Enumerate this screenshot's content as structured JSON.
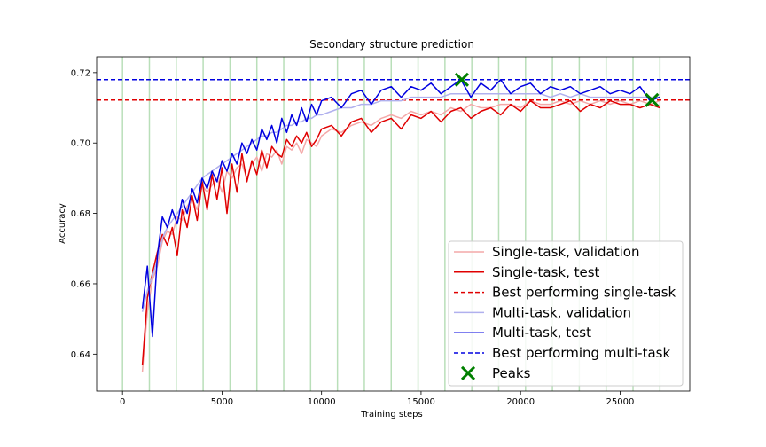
{
  "chart_data": {
    "type": "line",
    "title": "Secondary structure prediction",
    "xlabel": "Training steps",
    "ylabel": "Accuracy",
    "xlim": [
      -1300,
      28500
    ],
    "ylim": [
      0.6295,
      0.7245
    ],
    "xticks": [
      0,
      5000,
      10000,
      15000,
      20000,
      25000
    ],
    "yticks": [
      0.64,
      0.66,
      0.68,
      0.7,
      0.72
    ],
    "xtick_labels": [
      "0",
      "5000",
      "10000",
      "15000",
      "20000",
      "25000"
    ],
    "ytick_labels": [
      "0.64",
      "0.66",
      "0.68",
      "0.70",
      "0.72"
    ],
    "grid": false,
    "legend_position": "lower-right",
    "epoch_markers": {
      "color": "#b9dfb9",
      "x": [
        0,
        1350,
        2700,
        4050,
        5400,
        6750,
        8100,
        9450,
        10800,
        12150,
        13500,
        14850,
        16200,
        17550,
        18900,
        20250,
        21600,
        22950,
        24300,
        25650,
        27000
      ]
    },
    "series": [
      {
        "name": "Single-task, validation",
        "color": "#f4a9a9",
        "width": 1.5,
        "x": [
          1000,
          1250,
          1500,
          1750,
          2000,
          2250,
          2500,
          2750,
          3000,
          3250,
          3500,
          3750,
          4000,
          4250,
          4500,
          4750,
          5000,
          5250,
          5500,
          5750,
          6000,
          6250,
          6500,
          6750,
          7000,
          7250,
          7500,
          7750,
          8000,
          8250,
          8500,
          8750,
          9000,
          9250,
          9500,
          9750,
          10000,
          10500,
          11000,
          11500,
          12000,
          12500,
          13000,
          13500,
          14000,
          14500,
          15000,
          15500,
          16000,
          16500,
          17000,
          17500,
          18000,
          18500,
          19000,
          19500,
          20000,
          20500,
          21000,
          21500,
          22000,
          22500,
          23000,
          23500,
          24000,
          24500,
          25000,
          25500,
          26000,
          26500,
          27000
        ],
        "values": [
          0.635,
          0.652,
          0.661,
          0.665,
          0.672,
          0.675,
          0.674,
          0.679,
          0.678,
          0.682,
          0.684,
          0.681,
          0.688,
          0.686,
          0.688,
          0.69,
          0.686,
          0.692,
          0.69,
          0.693,
          0.694,
          0.69,
          0.694,
          0.696,
          0.692,
          0.697,
          0.696,
          0.698,
          0.694,
          0.699,
          0.698,
          0.7,
          0.697,
          0.701,
          0.7,
          0.699,
          0.702,
          0.704,
          0.703,
          0.705,
          0.706,
          0.705,
          0.707,
          0.708,
          0.707,
          0.709,
          0.708,
          0.709,
          0.708,
          0.71,
          0.709,
          0.711,
          0.71,
          0.71,
          0.711,
          0.711,
          0.71,
          0.712,
          0.711,
          0.711,
          0.712,
          0.711,
          0.712,
          0.711,
          0.712,
          0.711,
          0.712,
          0.711,
          0.712,
          0.711,
          0.712
        ]
      },
      {
        "name": "Single-task, test",
        "color": "#e00000",
        "width": 1.5,
        "x": [
          1000,
          1250,
          1500,
          1750,
          2000,
          2250,
          2500,
          2750,
          3000,
          3250,
          3500,
          3750,
          4000,
          4250,
          4500,
          4750,
          5000,
          5250,
          5500,
          5750,
          6000,
          6250,
          6500,
          6750,
          7000,
          7250,
          7500,
          7750,
          8000,
          8250,
          8500,
          8750,
          9000,
          9250,
          9500,
          9750,
          10000,
          10500,
          11000,
          11500,
          12000,
          12500,
          13000,
          13500,
          14000,
          14500,
          15000,
          15500,
          16000,
          16500,
          17000,
          17500,
          18000,
          18500,
          19000,
          19500,
          20000,
          20500,
          21000,
          21500,
          22000,
          22500,
          23000,
          23500,
          24000,
          24500,
          25000,
          25500,
          26000,
          26500,
          27000
        ],
        "values": [
          0.637,
          0.656,
          0.663,
          0.669,
          0.674,
          0.671,
          0.676,
          0.668,
          0.681,
          0.676,
          0.685,
          0.678,
          0.689,
          0.681,
          0.691,
          0.684,
          0.693,
          0.68,
          0.694,
          0.686,
          0.697,
          0.689,
          0.695,
          0.691,
          0.698,
          0.693,
          0.699,
          0.697,
          0.696,
          0.701,
          0.699,
          0.702,
          0.7,
          0.703,
          0.699,
          0.701,
          0.704,
          0.705,
          0.702,
          0.706,
          0.707,
          0.703,
          0.706,
          0.707,
          0.704,
          0.708,
          0.707,
          0.709,
          0.706,
          0.709,
          0.71,
          0.707,
          0.709,
          0.71,
          0.708,
          0.711,
          0.709,
          0.712,
          0.71,
          0.71,
          0.711,
          0.712,
          0.709,
          0.711,
          0.71,
          0.712,
          0.711,
          0.711,
          0.71,
          0.711,
          0.71
        ]
      },
      {
        "name": "Best performing single-task",
        "color": "#e00000",
        "dashed": true,
        "width": 1.5,
        "x": [
          -1300,
          28500
        ],
        "values": [
          0.7122,
          0.7122
        ]
      },
      {
        "name": "Multi-task, validation",
        "color": "#b0b0ee",
        "width": 1.5,
        "x": [
          1000,
          1250,
          1500,
          1750,
          2000,
          2250,
          2500,
          2750,
          3000,
          3250,
          3500,
          3750,
          4000,
          4250,
          4500,
          4750,
          5000,
          5250,
          5500,
          5750,
          6000,
          6250,
          6500,
          6750,
          7000,
          7250,
          7500,
          7750,
          8000,
          8250,
          8500,
          8750,
          9000,
          9250,
          9500,
          9750,
          10000,
          10500,
          11000,
          11500,
          12000,
          12500,
          13000,
          13500,
          14000,
          14500,
          15000,
          15500,
          16000,
          16500,
          17000,
          17500,
          18000,
          18500,
          19000,
          19500,
          20000,
          20500,
          21000,
          21500,
          22000,
          22500,
          23000,
          23500,
          24000,
          24500,
          25000,
          25500,
          26000,
          26500,
          27000
        ],
        "values": [
          0.652,
          0.658,
          0.662,
          0.667,
          0.673,
          0.676,
          0.678,
          0.68,
          0.682,
          0.684,
          0.686,
          0.688,
          0.69,
          0.691,
          0.692,
          0.693,
          0.694,
          0.695,
          0.696,
          0.697,
          0.698,
          0.699,
          0.7,
          0.701,
          0.702,
          0.702,
          0.703,
          0.703,
          0.704,
          0.705,
          0.705,
          0.706,
          0.706,
          0.707,
          0.707,
          0.708,
          0.708,
          0.709,
          0.71,
          0.71,
          0.711,
          0.711,
          0.712,
          0.712,
          0.712,
          0.713,
          0.713,
          0.713,
          0.713,
          0.714,
          0.714,
          0.714,
          0.714,
          0.714,
          0.714,
          0.714,
          0.714,
          0.714,
          0.714,
          0.713,
          0.714,
          0.713,
          0.714,
          0.713,
          0.713,
          0.713,
          0.713,
          0.713,
          0.713,
          0.713,
          0.713
        ]
      },
      {
        "name": "Multi-task, test",
        "color": "#0000e0",
        "width": 1.5,
        "x": [
          1000,
          1250,
          1500,
          1750,
          2000,
          2250,
          2500,
          2750,
          3000,
          3250,
          3500,
          3750,
          4000,
          4250,
          4500,
          4750,
          5000,
          5250,
          5500,
          5750,
          6000,
          6250,
          6500,
          6750,
          7000,
          7250,
          7500,
          7750,
          8000,
          8250,
          8500,
          8750,
          9000,
          9250,
          9500,
          9750,
          10000,
          10500,
          11000,
          11500,
          12000,
          12500,
          13000,
          13500,
          14000,
          14500,
          15000,
          15500,
          16000,
          16500,
          17000,
          17500,
          18000,
          18500,
          19000,
          19500,
          20000,
          20500,
          21000,
          21500,
          22000,
          22500,
          23000,
          23500,
          24000,
          24500,
          25000,
          25500,
          26000,
          26500,
          27000
        ],
        "values": [
          0.653,
          0.665,
          0.645,
          0.668,
          0.679,
          0.676,
          0.681,
          0.677,
          0.684,
          0.68,
          0.687,
          0.683,
          0.69,
          0.687,
          0.692,
          0.689,
          0.695,
          0.692,
          0.697,
          0.694,
          0.7,
          0.697,
          0.701,
          0.698,
          0.704,
          0.701,
          0.705,
          0.7,
          0.707,
          0.703,
          0.708,
          0.705,
          0.71,
          0.706,
          0.711,
          0.708,
          0.712,
          0.713,
          0.71,
          0.714,
          0.715,
          0.711,
          0.715,
          0.716,
          0.713,
          0.716,
          0.715,
          0.717,
          0.714,
          0.716,
          0.718,
          0.713,
          0.717,
          0.715,
          0.718,
          0.714,
          0.716,
          0.717,
          0.714,
          0.716,
          0.715,
          0.716,
          0.714,
          0.715,
          0.716,
          0.714,
          0.715,
          0.714,
          0.716,
          0.712,
          0.713
        ]
      },
      {
        "name": "Best performing multi-task",
        "color": "#0000e0",
        "dashed": true,
        "width": 1.5,
        "x": [
          -1300,
          28500
        ],
        "values": [
          0.718,
          0.718
        ]
      }
    ],
    "peaks": {
      "name": "Peaks",
      "color": "#008000",
      "points": [
        {
          "x": 17050,
          "y": 0.718
        },
        {
          "x": 26600,
          "y": 0.7122
        }
      ]
    },
    "legend": [
      {
        "label": "Single-task, validation",
        "style": "line",
        "color": "#f4a9a9"
      },
      {
        "label": "Single-task, test",
        "style": "line",
        "color": "#e00000"
      },
      {
        "label": "Best performing single-task",
        "style": "dashed",
        "color": "#e00000"
      },
      {
        "label": "Multi-task, validation",
        "style": "line",
        "color": "#b0b0ee"
      },
      {
        "label": "Multi-task, test",
        "style": "line",
        "color": "#0000e0"
      },
      {
        "label": "Best performing multi-task",
        "style": "dashed",
        "color": "#0000e0"
      },
      {
        "label": "Peaks",
        "style": "marker",
        "color": "#008000"
      }
    ]
  }
}
